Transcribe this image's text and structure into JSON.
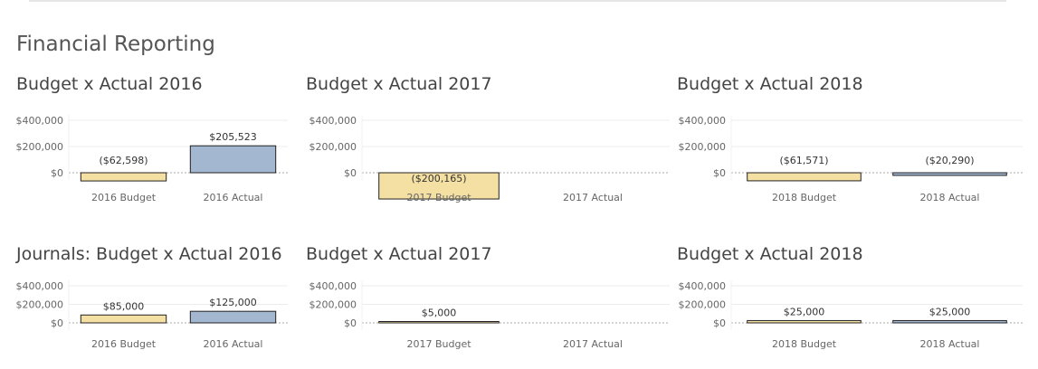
{
  "page_title": "Financial Reporting",
  "colors": {
    "budget_fill": "#f5e0a3",
    "actual_fill": "#a3b7d1",
    "bar_stroke": "#222222",
    "grid": "#ececec",
    "zero_line": "#aaaaaa"
  },
  "chart_data": [
    {
      "type": "bar",
      "title": "Budget x Actual 2016",
      "categories": [
        "2016 Budget",
        "2016 Actual"
      ],
      "values": [
        -62598,
        205523
      ],
      "data_labels": [
        "($62,598)",
        "$205,523"
      ],
      "yticks": [
        "$400,000",
        "$200,000",
        "$0"
      ],
      "ylim": [
        0,
        400000
      ]
    },
    {
      "type": "bar",
      "title": "Budget x Actual 2017",
      "categories": [
        "2017 Budget",
        "2017 Actual"
      ],
      "values": [
        -200165,
        null
      ],
      "data_labels": [
        "($200,165)",
        ""
      ],
      "yticks": [
        "$400,000",
        "$200,000",
        "$0"
      ],
      "ylim": [
        0,
        400000
      ]
    },
    {
      "type": "bar",
      "title": "Budget x Actual 2018",
      "categories": [
        "2018 Budget",
        "2018 Actual"
      ],
      "values": [
        -61571,
        -20290
      ],
      "data_labels": [
        "($61,571)",
        "($20,290)"
      ],
      "yticks": [
        "$400,000",
        "$200,000",
        "$0"
      ],
      "ylim": [
        0,
        400000
      ]
    },
    {
      "type": "bar",
      "title": "Journals: Budget x Actual 2016",
      "categories": [
        "2016 Budget",
        "2016 Actual"
      ],
      "values": [
        85000,
        125000
      ],
      "data_labels": [
        "$85,000",
        "$125,000"
      ],
      "yticks": [
        "$400,000",
        "$200,000",
        "$0"
      ],
      "ylim": [
        0,
        400000
      ]
    },
    {
      "type": "bar",
      "title": "Budget x Actual 2017",
      "categories": [
        "2017 Budget",
        "2017 Actual"
      ],
      "values": [
        5000,
        null
      ],
      "data_labels": [
        "$5,000",
        ""
      ],
      "yticks": [
        "$400,000",
        "$200,000",
        "$0"
      ],
      "ylim": [
        0,
        400000
      ]
    },
    {
      "type": "bar",
      "title": "Budget x Actual 2018",
      "categories": [
        "2018 Budget",
        "2018 Actual"
      ],
      "values": [
        25000,
        25000
      ],
      "data_labels": [
        "$25,000",
        "$25,000"
      ],
      "yticks": [
        "$400,000",
        "$200,000",
        "$0"
      ],
      "ylim": [
        0,
        400000
      ]
    }
  ]
}
